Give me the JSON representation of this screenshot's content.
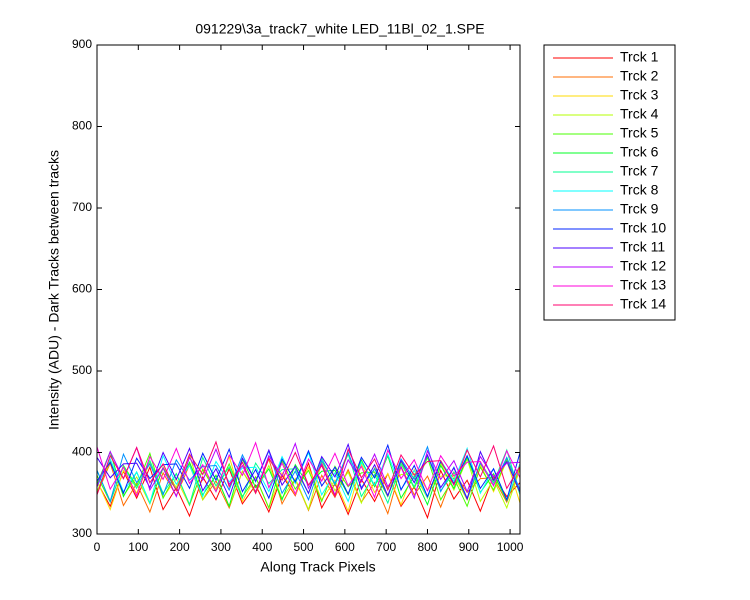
{
  "chart_data": {
    "type": "line",
    "title": "091229\\3a_track7_white LED_11Bl_02_1.SPE",
    "x_label": "Along Track Pixels",
    "y_label": "Intensity (ADU) - Dark Tracks between tracks",
    "xlim": [
      0,
      1024
    ],
    "xticks": [
      0,
      100,
      200,
      300,
      400,
      500,
      600,
      700,
      800,
      900,
      1000
    ],
    "ylim": [
      300,
      900
    ],
    "yticks": [
      300,
      400,
      500,
      600,
      700,
      800,
      900
    ],
    "legend": "outside-right",
    "x": [
      0,
      32,
      64,
      96,
      128,
      160,
      192,
      224,
      256,
      288,
      320,
      352,
      384,
      416,
      448,
      480,
      512,
      544,
      576,
      608,
      640,
      672,
      704,
      736,
      768,
      800,
      832,
      864,
      896,
      928,
      960,
      992,
      1024
    ],
    "series": [
      {
        "name": "Trck 1",
        "color": "#ff0000",
        "values": [
          364,
          334,
          377,
          344,
          382,
          330,
          357,
          322,
          370,
          342,
          380,
          337,
          360,
          327,
          372,
          347,
          387,
          332,
          362,
          324,
          367,
          340,
          374,
          334,
          358,
          320,
          378,
          343,
          366,
          328,
          371,
          346,
          363
        ]
      },
      {
        "name": "Trck 2",
        "color": "#ff6d00",
        "values": [
          349,
          387,
          335,
          362,
          327,
          375,
          347,
          385,
          342,
          365,
          332,
          377,
          352,
          392,
          337,
          367,
          329,
          372,
          345,
          379,
          339,
          363,
          325,
          383,
          348,
          371,
          333,
          376,
          351,
          368,
          369,
          339,
          382
        ]
      },
      {
        "name": "Trck 3",
        "color": "#ffdb00",
        "values": [
          365,
          330,
          378,
          350,
          388,
          345,
          368,
          335,
          380,
          355,
          395,
          340,
          370,
          332,
          375,
          348,
          382,
          342,
          366,
          328,
          386,
          351,
          374,
          336,
          379,
          354,
          371,
          372,
          342,
          385,
          352,
          390,
          338
        ]
      },
      {
        "name": "Trck 4",
        "color": "#b6ff00",
        "values": [
          352,
          390,
          347,
          370,
          337,
          382,
          357,
          397,
          342,
          372,
          334,
          377,
          350,
          384,
          344,
          368,
          330,
          388,
          353,
          376,
          338,
          381,
          356,
          373,
          374,
          344,
          387,
          354,
          392,
          340,
          367,
          332,
          380
        ]
      },
      {
        "name": "Trck 5",
        "color": "#49ff00",
        "values": [
          372,
          339,
          384,
          359,
          399,
          344,
          374,
          336,
          379,
          352,
          386,
          346,
          370,
          332,
          390,
          355,
          378,
          340,
          383,
          358,
          375,
          376,
          346,
          389,
          356,
          394,
          342,
          369,
          334,
          382,
          354,
          392,
          349
        ]
      },
      {
        "name": "Trck 6",
        "color": "#00ff24",
        "values": [
          361,
          401,
          346,
          376,
          338,
          381,
          354,
          388,
          348,
          372,
          334,
          392,
          357,
          380,
          342,
          385,
          360,
          377,
          378,
          348,
          391,
          358,
          396,
          344,
          371,
          336,
          384,
          356,
          394,
          351,
          374,
          341,
          386
        ]
      },
      {
        "name": "Trck 7",
        "color": "#00ff92",
        "values": [
          378,
          340,
          383,
          356,
          390,
          350,
          374,
          336,
          394,
          359,
          382,
          344,
          387,
          362,
          379,
          380,
          350,
          393,
          360,
          398,
          346,
          373,
          338,
          386,
          358,
          396,
          353,
          376,
          343,
          388,
          363,
          403,
          348
        ]
      },
      {
        "name": "Trck 8",
        "color": "#00ffff",
        "values": [
          358,
          392,
          352,
          376,
          338,
          396,
          361,
          384,
          346,
          389,
          364,
          381,
          382,
          352,
          395,
          362,
          400,
          348,
          375,
          340,
          388,
          360,
          398,
          355,
          378,
          345,
          390,
          365,
          405,
          350,
          380,
          342,
          385
        ]
      },
      {
        "name": "Trck 9",
        "color": "#0092ff",
        "values": [
          378,
          340,
          398,
          363,
          386,
          348,
          391,
          366,
          383,
          384,
          354,
          397,
          364,
          402,
          350,
          377,
          342,
          390,
          362,
          400,
          357,
          380,
          347,
          392,
          367,
          407,
          352,
          382,
          344,
          387,
          360,
          394,
          354
        ]
      },
      {
        "name": "Trck 10",
        "color": "#0024ff",
        "values": [
          365,
          388,
          350,
          393,
          368,
          385,
          386,
          356,
          399,
          366,
          404,
          352,
          379,
          344,
          392,
          364,
          402,
          359,
          382,
          349,
          394,
          369,
          409,
          354,
          384,
          346,
          389,
          362,
          396,
          356,
          380,
          342,
          400
        ]
      },
      {
        "name": "Trck 11",
        "color": "#4900ff",
        "values": [
          394,
          369,
          386,
          387,
          357,
          400,
          367,
          405,
          353,
          380,
          345,
          393,
          365,
          403,
          360,
          383,
          350,
          395,
          370,
          410,
          355,
          385,
          347,
          390,
          363,
          397,
          357,
          381,
          343,
          401,
          366,
          389,
          351
        ]
      },
      {
        "name": "Trck 12",
        "color": "#b600ff",
        "values": [
          358,
          401,
          368,
          406,
          354,
          381,
          346,
          394,
          366,
          404,
          361,
          384,
          351,
          396,
          371,
          411,
          356,
          386,
          348,
          391,
          364,
          398,
          358,
          382,
          344,
          402,
          367,
          390,
          352,
          395,
          370,
          387,
          388
        ]
      },
      {
        "name": "Trck 13",
        "color": "#ff00db",
        "values": [
          407,
          355,
          382,
          347,
          395,
          367,
          405,
          362,
          385,
          352,
          397,
          372,
          412,
          357,
          387,
          349,
          392,
          365,
          399,
          359,
          383,
          345,
          403,
          368,
          391,
          353,
          396,
          371,
          388,
          389,
          359,
          402,
          369
        ]
      },
      {
        "name": "Trck 14",
        "color": "#ff006d",
        "values": [
          348,
          396,
          368,
          406,
          363,
          386,
          353,
          398,
          373,
          413,
          358,
          388,
          350,
          393,
          366,
          400,
          360,
          384,
          346,
          404,
          369,
          392,
          354,
          397,
          372,
          389,
          390,
          360,
          403,
          370,
          408,
          356,
          383
        ]
      }
    ]
  }
}
